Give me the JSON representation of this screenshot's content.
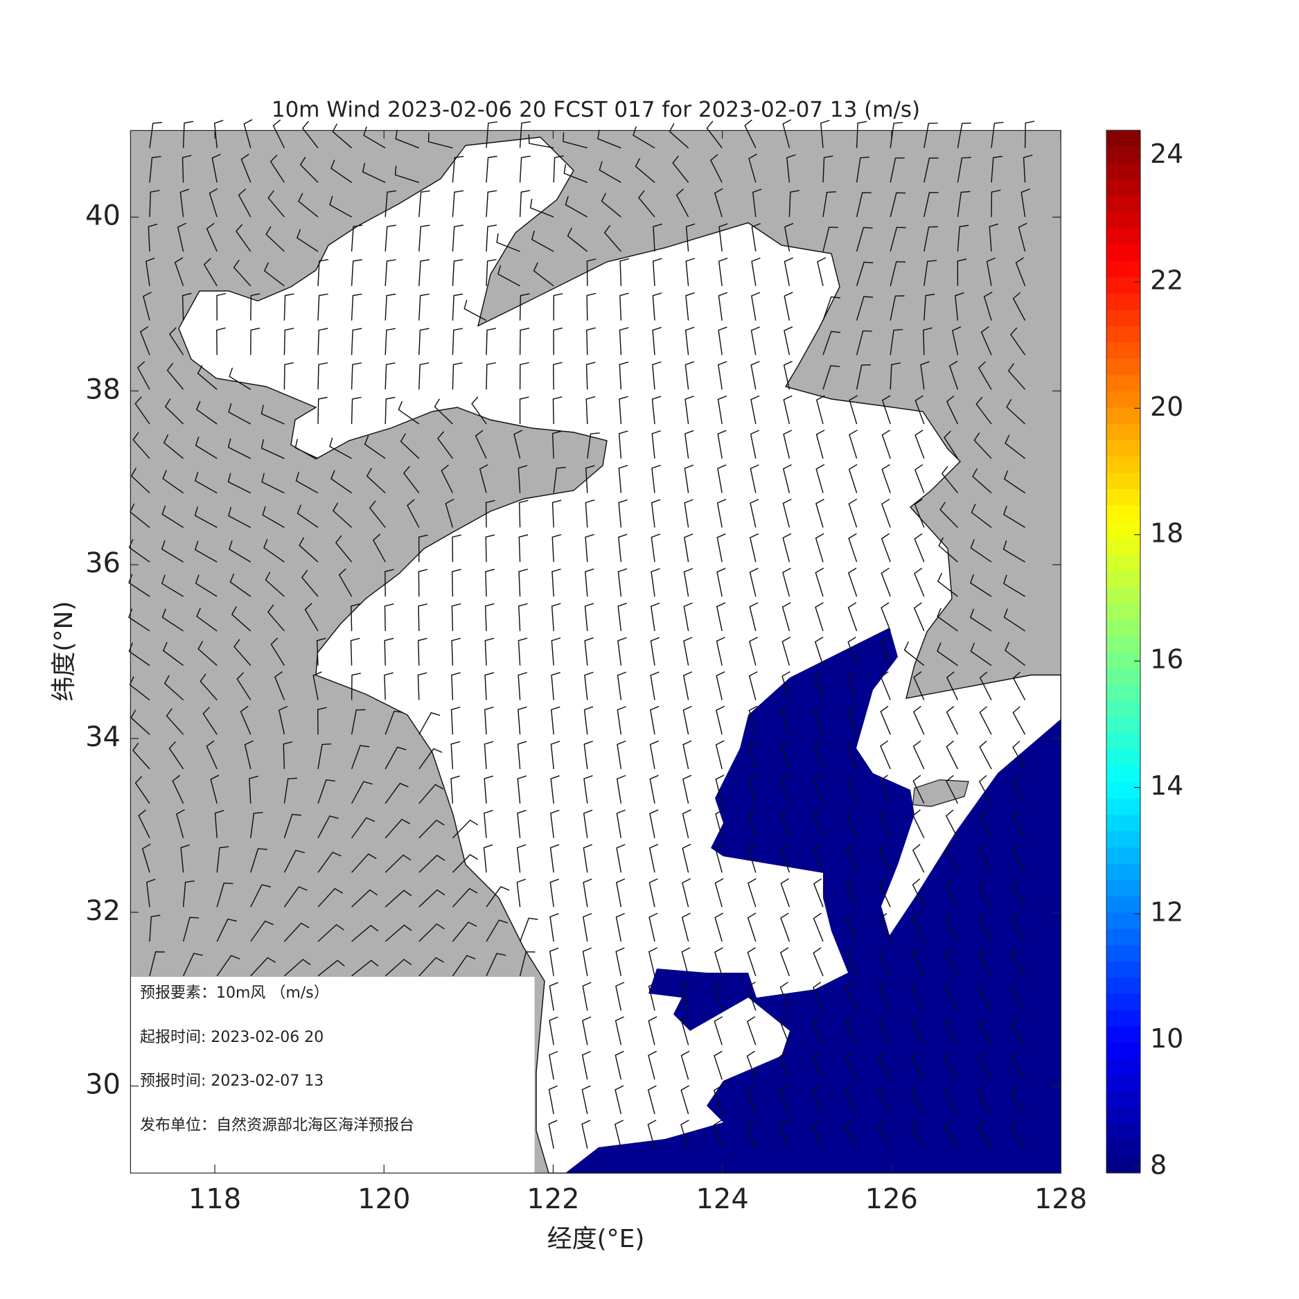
{
  "chart_data": {
    "type": "wind-map",
    "title": "10m Wind 2023-02-06 20 FCST 017 for 2023-02-07 13 (m/s)",
    "x_label": "经度(°E)",
    "y_label": "纬度(°N)",
    "xlim": [
      117,
      128
    ],
    "xticks": [
      118,
      120,
      122,
      124,
      126,
      128
    ],
    "ylim": [
      29,
      41
    ],
    "yticks": [
      30,
      32,
      34,
      36,
      38,
      40
    ],
    "colorbar": {
      "colormap": "jet",
      "lim": [
        7.9,
        24.4
      ],
      "ticks": [
        8,
        10,
        12,
        14,
        16,
        18,
        20,
        22,
        24
      ]
    },
    "info": [
      "预报要素：10m风 （m/s）",
      "起报时间: 2023-02-06 20",
      "预报时间: 2023-02-07 13",
      "发布单位：自然资源部北海区海洋预报台"
    ]
  }
}
